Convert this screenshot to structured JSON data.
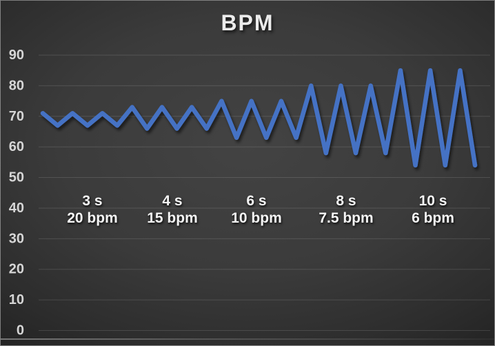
{
  "chart_data": {
    "type": "line",
    "title": "BPM",
    "xlabel": "",
    "ylabel": "",
    "ylim": [
      0,
      90
    ],
    "yticks": [
      0,
      10,
      20,
      30,
      40,
      50,
      60,
      70,
      80,
      90
    ],
    "xticks": [],
    "grid": true,
    "legend_position": "none",
    "line_color": "#4472c4",
    "series": [
      {
        "name": "BPM",
        "values": [
          71,
          67,
          71,
          67,
          71,
          67,
          73,
          66,
          73,
          66,
          73,
          66,
          75,
          63,
          75,
          63,
          75,
          63,
          80,
          58,
          80,
          58,
          80,
          58,
          85,
          54,
          85,
          54,
          85,
          54
        ]
      }
    ],
    "sections": [
      {
        "duration": "3 s",
        "rate": "20 bpm",
        "peak": 71,
        "trough": 67,
        "cycles": 3
      },
      {
        "duration": "4 s",
        "rate": "15 bpm",
        "peak": 73,
        "trough": 66,
        "cycles": 3
      },
      {
        "duration": "6 s",
        "rate": "10 bpm",
        "peak": 75,
        "trough": 63,
        "cycles": 3
      },
      {
        "duration": "8 s",
        "rate": "7.5 bpm",
        "peak": 80,
        "trough": 58,
        "cycles": 3
      },
      {
        "duration": "10 s",
        "rate": "6 bpm",
        "peak": 85,
        "trough": 54,
        "cycles": 3
      }
    ]
  },
  "colors": {
    "accent_line": "#4472c4",
    "grid_line": "#4d4d4d",
    "axis_text": "#d6d6d6",
    "annotation_text": "#f5f5f5",
    "title_text": "#ececec",
    "background_center": "#434343",
    "background_edge": "#202020"
  }
}
